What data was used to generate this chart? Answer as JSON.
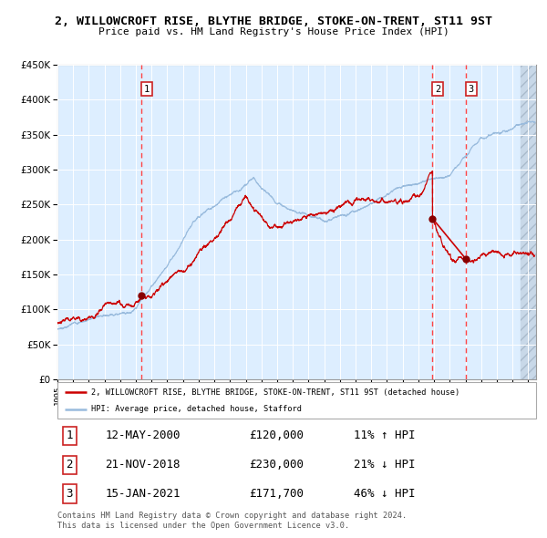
{
  "title": "2, WILLOWCROFT RISE, BLYTHE BRIDGE, STOKE-ON-TRENT, ST11 9ST",
  "subtitle": "Price paid vs. HM Land Registry's House Price Index (HPI)",
  "legend_red": "2, WILLOWCROFT RISE, BLYTHE BRIDGE, STOKE-ON-TRENT, ST11 9ST (detached house)",
  "legend_blue": "HPI: Average price, detached house, Stafford",
  "footer1": "Contains HM Land Registry data © Crown copyright and database right 2024.",
  "footer2": "This data is licensed under the Open Government Licence v3.0.",
  "transactions": [
    {
      "num": 1,
      "date": "12-MAY-2000",
      "price": 120000,
      "hpi_rel": "11% ↑ HPI"
    },
    {
      "num": 2,
      "date": "21-NOV-2018",
      "price": 230000,
      "hpi_rel": "21% ↓ HPI"
    },
    {
      "num": 3,
      "date": "15-JAN-2021",
      "price": 171700,
      "hpi_rel": "46% ↓ HPI"
    }
  ],
  "t1_x": 2000.37,
  "t2_x": 2018.9,
  "t3_x": 2021.04,
  "ylim": [
    0,
    450000
  ],
  "xlim_start": 1995.0,
  "xlim_end": 2025.5,
  "yticks": [
    0,
    50000,
    100000,
    150000,
    200000,
    250000,
    300000,
    350000,
    400000,
    450000
  ],
  "red_color": "#cc0000",
  "blue_color": "#99bbdd",
  "bg_color": "#ddeeff",
  "hatch_color": "#bbccdd",
  "grid_color": "#ffffff",
  "dashed_color": "#ff4444",
  "marker_color": "#880000"
}
